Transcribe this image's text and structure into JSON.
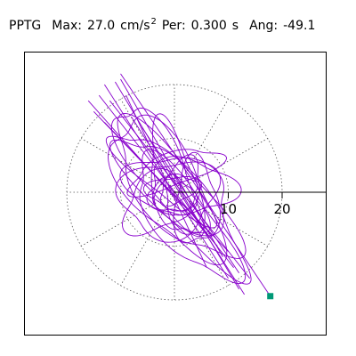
{
  "header": {
    "label": "PPTG",
    "max_label": "Max:",
    "max_value": "27.0",
    "max_unit": "cm/s",
    "max_unit_exp": "2",
    "per_label": "Per:",
    "per_value": "0.300",
    "per_unit": "s",
    "ang_label": "Ang:",
    "ang_value": "-49.1"
  },
  "colors": {
    "trace": "#8800cc",
    "endpoint": "#009977",
    "grid": "#555555",
    "frame": "#000000"
  },
  "chart_data": {
    "type": "polar-orbit",
    "title": "",
    "radial_ticks": [
      10,
      20
    ],
    "radial_tick_labels": [
      "10",
      "20"
    ],
    "rings": [
      10,
      20
    ],
    "spokes_deg": [
      0,
      30,
      60,
      90,
      120,
      150,
      180,
      210,
      240,
      270,
      300,
      330
    ],
    "max_radius": 27,
    "center": [
      0,
      0
    ],
    "endpoint": {
      "x": 17.8,
      "y": -19.3
    },
    "loops": [
      {
        "a": 16,
        "b": 5.5,
        "angle": -49,
        "dx": 0,
        "dy": 0
      },
      {
        "a": 15,
        "b": 6.5,
        "angle": -55,
        "dx": -1.5,
        "dy": 1
      },
      {
        "a": 17,
        "b": 4.5,
        "angle": -47,
        "dx": 1.5,
        "dy": -2
      },
      {
        "a": 10,
        "b": 6,
        "angle": -25,
        "dx": 1,
        "dy": 0
      },
      {
        "a": 11,
        "b": 4,
        "angle": -75,
        "dx": 0,
        "dy": 2
      },
      {
        "a": 9,
        "b": 7,
        "angle": 10,
        "dx": -1,
        "dy": -1
      },
      {
        "a": 8,
        "b": 5,
        "angle": -5,
        "dx": 3,
        "dy": 1
      },
      {
        "a": 12,
        "b": 3.5,
        "angle": -40,
        "dx": -2,
        "dy": 3
      },
      {
        "a": 7,
        "b": 5,
        "angle": 35,
        "dx": -3,
        "dy": -2
      },
      {
        "a": 6,
        "b": 3,
        "angle": -60,
        "dx": 2,
        "dy": -3
      },
      {
        "a": 14,
        "b": 5,
        "angle": -52,
        "dx": 2,
        "dy": -5
      },
      {
        "a": 13,
        "b": 4.5,
        "angle": -58,
        "dx": -3,
        "dy": 5
      },
      {
        "a": 9,
        "b": 3,
        "angle": 20,
        "dx": 0,
        "dy": 4
      },
      {
        "a": 8,
        "b": 4,
        "angle": -90,
        "dx": 4,
        "dy": -2
      },
      {
        "a": 5,
        "b": 3,
        "angle": 0,
        "dx": 0,
        "dy": 0
      },
      {
        "a": 5.5,
        "b": 3.5,
        "angle": 60,
        "dx": 1,
        "dy": 1
      },
      {
        "a": 4,
        "b": 3,
        "angle": -30,
        "dx": -1,
        "dy": -1
      },
      {
        "a": 3.5,
        "b": 2.5,
        "angle": 30,
        "dx": 0.5,
        "dy": 0.5
      }
    ],
    "strokes": [
      [
        [
          -13,
          20
        ],
        [
          10,
          -16
        ]
      ],
      [
        [
          -11,
          20.5
        ],
        [
          12,
          -18
        ]
      ],
      [
        [
          -10,
          21
        ],
        [
          9,
          -12
        ]
      ],
      [
        [
          -14,
          18
        ],
        [
          11,
          -14
        ]
      ],
      [
        [
          -12,
          17
        ],
        [
          14,
          -16
        ]
      ],
      [
        [
          -16,
          17
        ],
        [
          8,
          -10
        ]
      ],
      [
        [
          -8,
          14
        ],
        [
          13,
          -19
        ]
      ],
      [
        [
          -15,
          15
        ],
        [
          7,
          -8
        ]
      ],
      [
        [
          -10,
          22
        ],
        [
          17.8,
          -19.3
        ]
      ],
      [
        [
          -6,
          12
        ],
        [
          12,
          -15
        ]
      ],
      [
        [
          -13,
          13
        ],
        [
          10,
          -11
        ]
      ],
      [
        [
          -9,
          18
        ],
        [
          6,
          -14
        ]
      ]
    ]
  }
}
